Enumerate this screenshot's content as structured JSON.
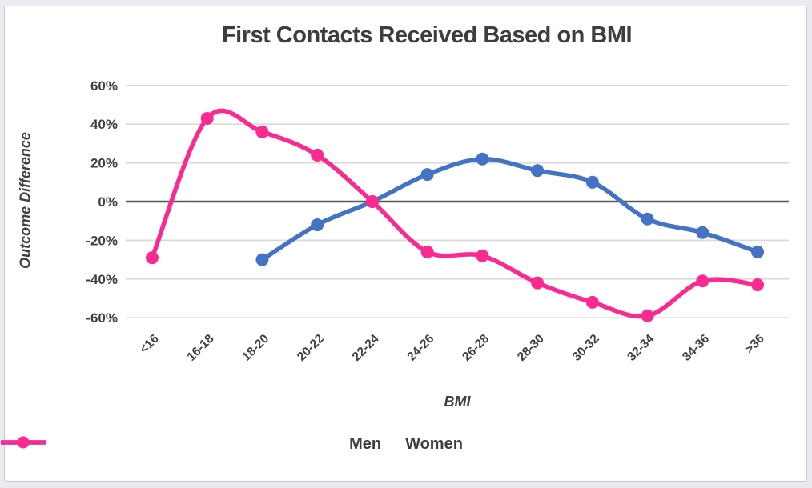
{
  "chart_data": {
    "type": "line",
    "smoothed": true,
    "title": "First Contacts Received Based on BMI",
    "xlabel": "BMI",
    "ylabel": "Outcome Difference",
    "categories": [
      "<16",
      "16-18",
      "18-20",
      "20-22",
      "22-24",
      "24-26",
      "26-28",
      "28-30",
      "30-32",
      "32-34",
      "34-36",
      ">36"
    ],
    "series": [
      {
        "name": "Men",
        "color": "#4472c4",
        "values": [
          null,
          null,
          -30,
          -12,
          0,
          14,
          22,
          16,
          10,
          -9,
          -16,
          -26
        ]
      },
      {
        "name": "Women",
        "color": "#fb2a90",
        "values": [
          -29,
          43,
          36,
          24,
          0,
          -26,
          -28,
          -42,
          -52,
          -59,
          -41,
          -43
        ]
      }
    ],
    "ylim": [
      -60,
      60
    ],
    "y_tick_step": 20,
    "y_tick_labels": [
      "60%",
      "40%",
      "20%",
      "0%",
      "-20%",
      "-40%",
      "-60%"
    ],
    "grid": true,
    "legend_position": "bottom",
    "colors": {
      "grid": "#d9d9d9",
      "zero_line": "#595959",
      "text": "#404040",
      "background": "#ffffff",
      "page_background": "#e9ebf1"
    }
  }
}
